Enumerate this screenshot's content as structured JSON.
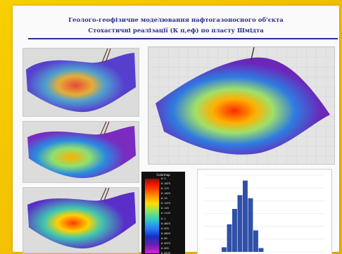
{
  "slide": {
    "title_line1": "Геолого-геофізичне моделювання нафтогазоносного об'єкта",
    "title_line2": "Стохастичні реалізації (К п,еф) по пласту Шмідта",
    "colors": {
      "background": "#f4c200",
      "title": "#2a2f8f",
      "panel": "#fafafa"
    }
  },
  "views": [
    {
      "name": "realization-1",
      "icon": "3d-surface-realization"
    },
    {
      "name": "realization-2",
      "icon": "3d-surface-realization"
    },
    {
      "name": "realization-3",
      "icon": "3d-surface-realization"
    },
    {
      "name": "realization-main",
      "icon": "3d-surface-realization"
    }
  ],
  "legend": {
    "title": "Colormap",
    "ticks": [
      "0.2",
      "0.1875",
      "0.175",
      "0.1625",
      "0.15",
      "0.1375",
      "0.125",
      "0.1125",
      "0.1",
      "0.0875",
      "0.075",
      "0.0625",
      "0.05",
      "0.0375",
      "0.025",
      "0.0125"
    ]
  },
  "histogram": {
    "type": "bar",
    "bar_color": "#2f4fa8",
    "values": [
      0.06,
      0.36,
      0.56,
      0.74,
      0.93,
      0.7,
      0.28,
      0.05
    ],
    "ylim": [
      0,
      1
    ]
  }
}
